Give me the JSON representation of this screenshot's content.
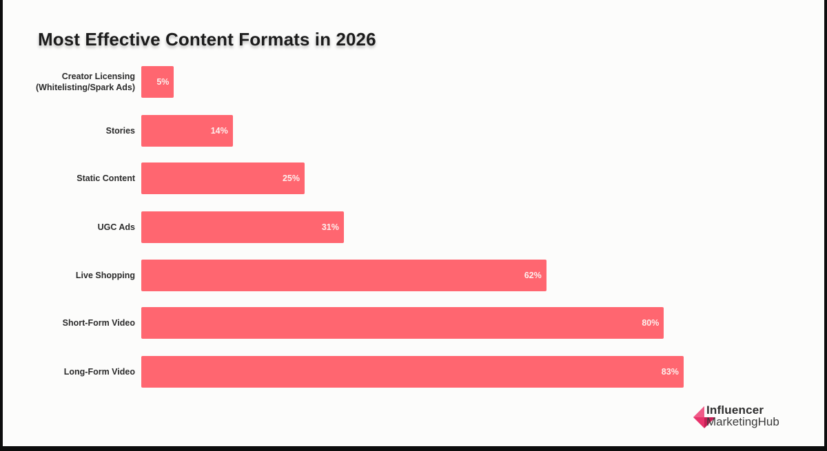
{
  "chart": {
    "title": "Most Effective Content Formats in 2026",
    "bar_color": "#ff6670",
    "rows": [
      {
        "label_line1": "Creator Licensing",
        "label_line2": "(Whitelisting/Spark Ads)",
        "value_label": "5%"
      },
      {
        "label_line1": "Stories",
        "label_line2": "",
        "value_label": "14%"
      },
      {
        "label_line1": "Static Content",
        "label_line2": "",
        "value_label": "25%"
      },
      {
        "label_line1": "UGC Ads",
        "label_line2": "",
        "value_label": "31%"
      },
      {
        "label_line1": "Live Shopping",
        "label_line2": "",
        "value_label": "62%"
      },
      {
        "label_line1": "Short-Form Video",
        "label_line2": "",
        "value_label": "80%"
      },
      {
        "label_line1": "Long-Form Video",
        "label_line2": "",
        "value_label": "83%"
      }
    ]
  },
  "logo": {
    "line1": "Influencer",
    "line2": "MarketingHub",
    "icon": "influencer-marketing-hub-logo-icon",
    "colors": [
      "#e8336b",
      "#c41f55",
      "#f05a88"
    ]
  },
  "chart_data": {
    "type": "bar",
    "orientation": "horizontal",
    "title": "Most Effective Content Formats in 2026",
    "categories": [
      "Creator Licensing (Whitelisting/Spark Ads)",
      "Stories",
      "Static Content",
      "UGC Ads",
      "Live Shopping",
      "Short-Form Video",
      "Long-Form Video"
    ],
    "values": [
      5,
      14,
      25,
      31,
      62,
      80,
      83
    ],
    "unit": "%",
    "xlabel": "",
    "ylabel": "",
    "xlim": [
      0,
      100
    ],
    "grid": false,
    "legend": null,
    "data_labels": true,
    "color": "#ff6670"
  }
}
